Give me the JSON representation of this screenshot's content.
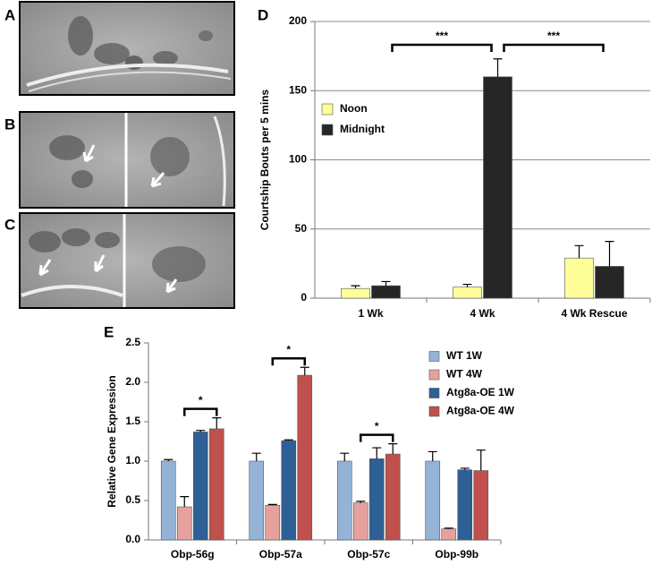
{
  "panel_labels": [
    "A",
    "B",
    "C",
    "D",
    "E"
  ],
  "chart_data": [
    {
      "type": "bar",
      "ylabel": "Courtship Bouts per 5 mins",
      "categories": [
        "1 Wk",
        "4 Wk",
        "4 Wk Rescue"
      ],
      "series": [
        {
          "name": "Noon",
          "color": "#ffff99",
          "values": [
            7,
            8,
            29
          ],
          "errors": [
            2,
            2,
            9
          ]
        },
        {
          "name": "Midnight",
          "color": "#262626",
          "values": [
            9,
            160,
            23
          ],
          "errors": [
            3,
            13,
            18
          ]
        }
      ],
      "ylim": [
        0,
        200
      ],
      "yticks": [
        0,
        50,
        100,
        150,
        200
      ],
      "grid": true,
      "significance": [
        "***",
        "***"
      ]
    },
    {
      "type": "bar",
      "ylabel": "Relative Gene Expression",
      "categories": [
        "Obp-56g",
        "Obp-57a",
        "Obp-57c",
        "Obp-99b"
      ],
      "series": [
        {
          "name": "WT 1W",
          "color": "#95b3d7",
          "values": [
            1.0,
            1.0,
            1.0,
            1.0
          ],
          "errors": [
            0.02,
            0.1,
            0.1,
            0.12
          ]
        },
        {
          "name": "WT 4W",
          "color": "#e6a19e",
          "values": [
            0.42,
            0.44,
            0.47,
            0.14
          ],
          "errors": [
            0.13,
            0.01,
            0.02,
            0.01
          ]
        },
        {
          "name": "Atg8a-OE 1W",
          "color": "#2e5f95",
          "values": [
            1.37,
            1.26,
            1.03,
            0.89
          ],
          "errors": [
            0.02,
            0.01,
            0.14,
            0.02
          ]
        },
        {
          "name": "Atg8a-OE 4W",
          "color": "#c0504d",
          "values": [
            1.41,
            2.09,
            1.09,
            0.88
          ],
          "errors": [
            0.14,
            0.1,
            0.13,
            0.26
          ]
        }
      ],
      "ylim": [
        0,
        2.5
      ],
      "yticks": [
        {
          "value": 0,
          "label": "0.0"
        },
        0.5,
        {
          "value": 1,
          "label": "1.0"
        },
        1.5,
        {
          "value": 2,
          "label": "2.0"
        },
        2.5
      ],
      "grid": false,
      "significance": [
        "*",
        "*",
        "*",
        null
      ]
    }
  ]
}
